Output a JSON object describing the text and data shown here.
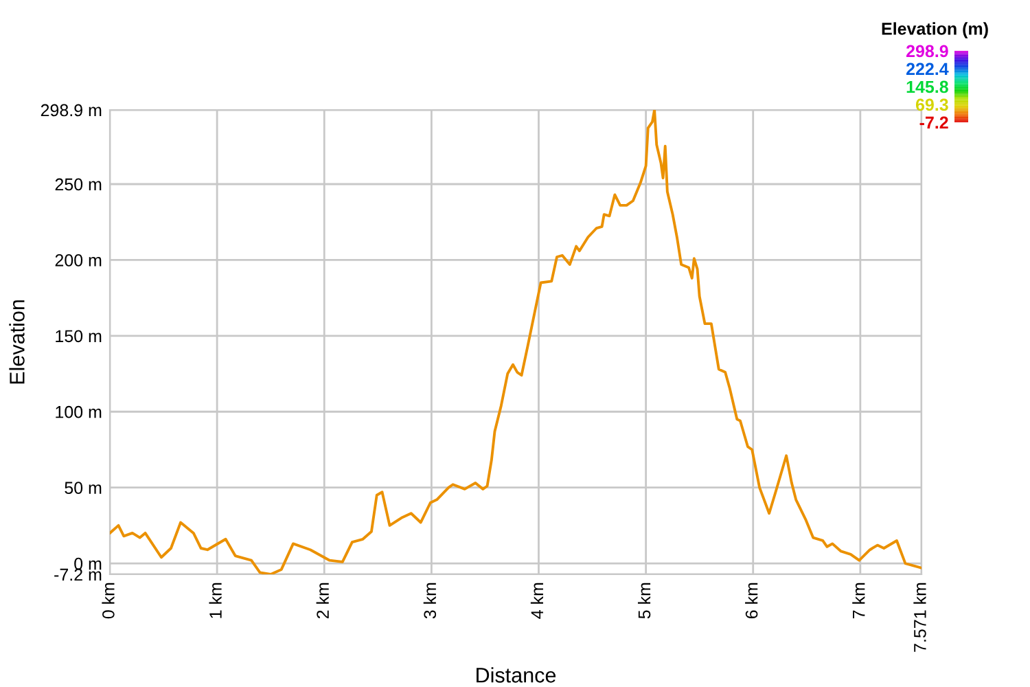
{
  "chart_data": {
    "type": "line",
    "xlabel": "Distance",
    "ylabel": "Elevation",
    "clabel": "Elevation (m)",
    "clim": [
      -7.2,
      298.9
    ],
    "cticks": [
      {
        "value": 298.9,
        "label": "298.9"
      },
      {
        "value": 222.4,
        "label": "222.4"
      },
      {
        "value": 145.8,
        "label": "145.8"
      },
      {
        "value": 69.3,
        "label": "69.3"
      },
      {
        "value": -7.2,
        "label": "-7.2"
      }
    ],
    "xlim": [
      0,
      7.571
    ],
    "ylim": [
      -7.2,
      298.9
    ],
    "xticks": [
      {
        "value": 0,
        "label": "0 km"
      },
      {
        "value": 1,
        "label": "1 km"
      },
      {
        "value": 2,
        "label": "2 km"
      },
      {
        "value": 3,
        "label": "3 km"
      },
      {
        "value": 4,
        "label": "4 km"
      },
      {
        "value": 5,
        "label": "5 km"
      },
      {
        "value": 6,
        "label": "6 km"
      },
      {
        "value": 7,
        "label": "7 km"
      },
      {
        "value": 7.571,
        "label": "7.571 km"
      }
    ],
    "yticks": [
      {
        "value": -7.2,
        "label": "-7.2 m"
      },
      {
        "value": 0,
        "label": "0 m"
      },
      {
        "value": 50,
        "label": "50 m"
      },
      {
        "value": 100,
        "label": "100 m"
      },
      {
        "value": 150,
        "label": "150 m"
      },
      {
        "value": 200,
        "label": "200 m"
      },
      {
        "value": 250,
        "label": "250 m"
      },
      {
        "value": 298.9,
        "label": "298.9 m"
      }
    ],
    "grid": true,
    "x": [
      0,
      0.08,
      0.13,
      0.21,
      0.28,
      0.33,
      0.48,
      0.57,
      0.66,
      0.78,
      0.85,
      0.91,
      1.08,
      1.17,
      1.32,
      1.4,
      1.5,
      1.6,
      1.71,
      1.87,
      2.05,
      2.17,
      2.26,
      2.36,
      2.44,
      2.49,
      2.54,
      2.61,
      2.72,
      2.81,
      2.9,
      2.99,
      3.05,
      3.16,
      3.2,
      3.31,
      3.41,
      3.48,
      3.52,
      3.56,
      3.59,
      3.65,
      3.71,
      3.76,
      3.8,
      3.84,
      3.9,
      3.97,
      4.02,
      4.12,
      4.17,
      4.22,
      4.29,
      4.35,
      4.38,
      4.46,
      4.54,
      4.59,
      4.61,
      4.66,
      4.71,
      4.76,
      4.82,
      4.88,
      4.95,
      5.0,
      5.02,
      5.06,
      5.08,
      5.1,
      5.14,
      5.16,
      5.18,
      5.2,
      5.25,
      5.29,
      5.33,
      5.4,
      5.43,
      5.45,
      5.48,
      5.5,
      5.55,
      5.61,
      5.68,
      5.74,
      5.78,
      5.85,
      5.88,
      5.95,
      5.99,
      6.06,
      6.15,
      6.21,
      6.31,
      6.36,
      6.4,
      6.49,
      6.56,
      6.65,
      6.69,
      6.74,
      6.82,
      6.91,
      6.99,
      7.09,
      7.16,
      7.22,
      7.34,
      7.42,
      7.571
    ],
    "values": [
      20,
      25,
      18,
      20,
      17,
      20,
      4,
      10,
      27,
      20,
      10,
      9,
      16,
      5,
      2,
      -6,
      -7.2,
      -4,
      13,
      9,
      2,
      1,
      14,
      16,
      21,
      45,
      47,
      25,
      30,
      33,
      27,
      40,
      42,
      50,
      52,
      49,
      53,
      49,
      51,
      68,
      87,
      104,
      125,
      131,
      126,
      124,
      144,
      168,
      185,
      186,
      202,
      203,
      197,
      209,
      206,
      215,
      221,
      222,
      230,
      229,
      243,
      236,
      236,
      239,
      251,
      262,
      287,
      291,
      298.9,
      276,
      264,
      254,
      275,
      245,
      230,
      215,
      197,
      195,
      188,
      201,
      194,
      176,
      158,
      158,
      128,
      126,
      116,
      95,
      94,
      77,
      75,
      50,
      33,
      47,
      71,
      53,
      42,
      29,
      17,
      15,
      11,
      13,
      8,
      6,
      2,
      9,
      12,
      10,
      15,
      0,
      -3
    ]
  }
}
